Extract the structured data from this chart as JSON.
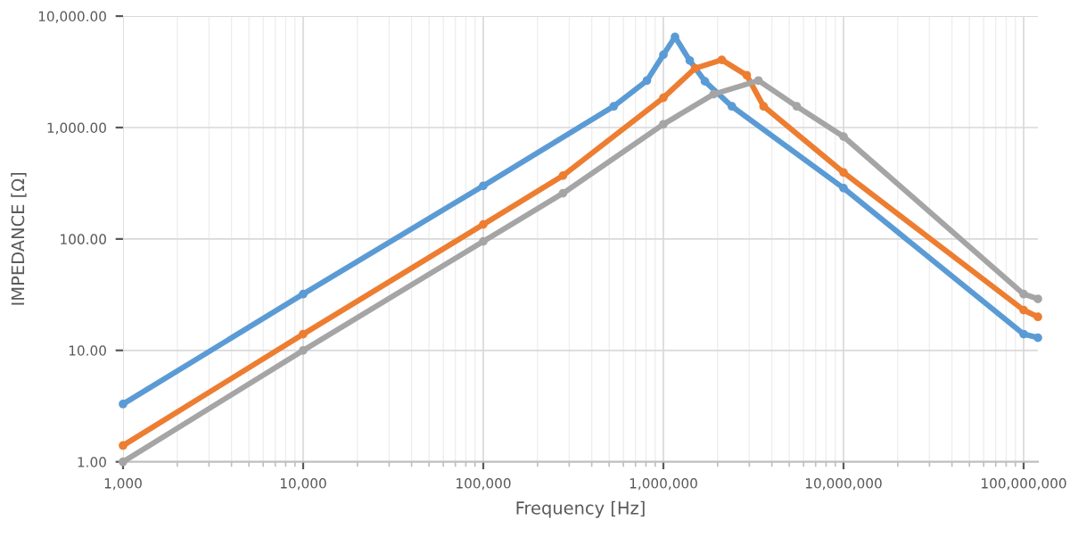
{
  "chart_data": {
    "type": "line",
    "xlabel": "Frequency [Hz]",
    "ylabel": "IMPEDANCE [Ω]",
    "log": "xy",
    "grid": true,
    "marker": "circle",
    "xlim": [
      1000,
      120000000
    ],
    "xticks": [
      {
        "value": 1000,
        "label": "1,000"
      },
      {
        "value": 10000,
        "label": "10,000"
      },
      {
        "value": 100000,
        "label": "100,000"
      },
      {
        "value": 1000000,
        "label": "1,000,000"
      },
      {
        "value": 10000000,
        "label": "10,000,000"
      },
      {
        "value": 100000000,
        "label": "100,000,000"
      }
    ],
    "ylim": [
      1,
      10000
    ],
    "yticks": [
      {
        "value": 1,
        "label": "1.00"
      },
      {
        "value": 10,
        "label": "10.00"
      },
      {
        "value": 100,
        "label": "100.00"
      },
      {
        "value": 1000,
        "label": "1,000.00"
      },
      {
        "value": 10000,
        "label": "10,000.00"
      }
    ],
    "series": [
      {
        "color": "#5b9bd5",
        "x": [
          1000,
          10000,
          100000,
          530000,
          810000,
          1000000,
          1160000,
          1400000,
          1700000,
          2400000,
          10000000,
          100000000,
          120000000
        ],
        "values": [
          3.3,
          32,
          300,
          1550,
          2640,
          4500,
          6500,
          4000,
          2600,
          1550,
          286,
          14,
          13
        ]
      },
      {
        "color": "#ed7d31",
        "x": [
          1000,
          10000,
          100000,
          277000,
          1000000,
          1500000,
          2110000,
          2900000,
          3600000,
          10000000,
          100000000,
          120000000
        ],
        "values": [
          1.4,
          14,
          135,
          370,
          1850,
          3400,
          4050,
          2950,
          1550,
          395,
          23,
          20
        ]
      },
      {
        "color": "#a5a5a5",
        "x": [
          1000,
          10000,
          100000,
          277000,
          1000000,
          1900000,
          3370000,
          5500000,
          10000000,
          100000000,
          120000000
        ],
        "values": [
          1.0,
          10,
          95,
          257,
          1070,
          1990,
          2640,
          1550,
          830,
          32,
          29
        ]
      }
    ]
  }
}
